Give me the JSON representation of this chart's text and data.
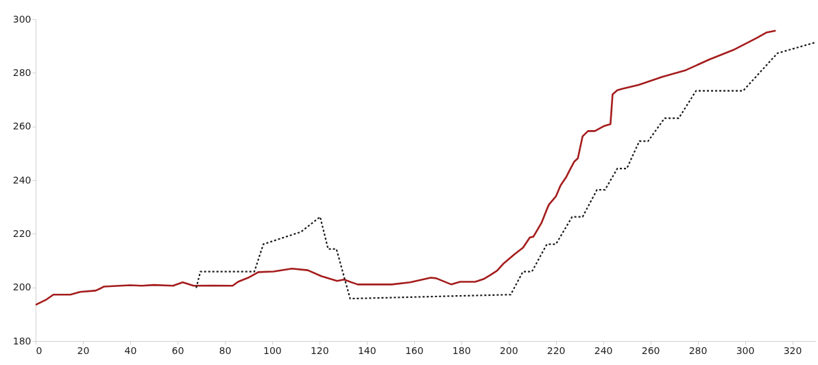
{
  "chart_data": {
    "type": "line",
    "xlim": [
      0,
      330
    ],
    "xticks": [
      0,
      20,
      40,
      60,
      80,
      100,
      120,
      140,
      160,
      180,
      200,
      220,
      240,
      260,
      280,
      300,
      320
    ],
    "ylim": [
      180,
      300
    ],
    "yticks": [
      180,
      200,
      220,
      240,
      260,
      280,
      300
    ],
    "grid": false,
    "series": [
      {
        "color": "#a51c1c",
        "line_style": "solid",
        "x": [
          0,
          4.6,
          7.5,
          14.7,
          18.8,
          25.4,
          27.8,
          28.9,
          39.9,
          45,
          50,
          58.1,
          62.2,
          66.8,
          75,
          83.3,
          85.6,
          89.9,
          94.2,
          100.6,
          108.4,
          115.1,
          120.8,
          127.5,
          130.4,
          136.2,
          150.6,
          158.4,
          167.1,
          169.4,
          175.8,
          179.5,
          185.9,
          189.4,
          192.3,
          195.1,
          198,
          202.7,
          206.1,
          209,
          210.5,
          213.9,
          216.2,
          217.1,
          220,
          222,
          224.3,
          225.8,
          227.8,
          229.3,
          231.3,
          233.6,
          236.5,
          240.2,
          243.1,
          244,
          246,
          248,
          255,
          265,
          275,
          285,
          295,
          305,
          309,
          313
        ],
        "values": [
          193.5,
          195.5,
          197.3,
          197.3,
          198.3,
          198.8,
          199.8,
          200.3,
          200.8,
          200.6,
          200.9,
          200.6,
          201.9,
          200.6,
          200.7,
          200.6,
          202.1,
          203.6,
          205.7,
          205.9,
          207,
          206.4,
          204.2,
          202.4,
          202.9,
          201.1,
          201.1,
          201.9,
          203.6,
          203.4,
          201.1,
          202.1,
          202.1,
          203.1,
          204.6,
          206.2,
          209,
          212.5,
          214.8,
          218.6,
          218.9,
          224,
          229.1,
          230.9,
          233.9,
          238,
          241,
          243.6,
          246.9,
          248.1,
          256.3,
          258.3,
          258.3,
          260.1,
          260.9,
          272,
          273.5,
          274,
          275.5,
          278.5,
          281,
          285,
          288.5,
          293,
          295,
          295.7
        ]
      },
      {
        "color": "#1a1a1a",
        "line_style": "dotted",
        "x": [
          67.9,
          69.7,
          92.5,
          96.3,
          112.2,
          120.3,
          123.7,
          127.2,
          133,
          177.8,
          200.9,
          206.1,
          209.9,
          216.2,
          220,
          226.9,
          231.3,
          237.4,
          240.8,
          246,
          250,
          255.3,
          259,
          266,
          272,
          279.3,
          299.2,
          313.7,
          330
        ],
        "values": [
          199.8,
          205.9,
          205.9,
          216.1,
          220.7,
          226.3,
          214.3,
          214.3,
          195.8,
          196.8,
          197.3,
          205.9,
          205.9,
          216.1,
          216.1,
          226.3,
          226.3,
          236.4,
          236.4,
          244.3,
          244.3,
          254.5,
          254.5,
          263.1,
          263.1,
          273.3,
          273.3,
          287.3,
          291.4
        ]
      }
    ]
  }
}
